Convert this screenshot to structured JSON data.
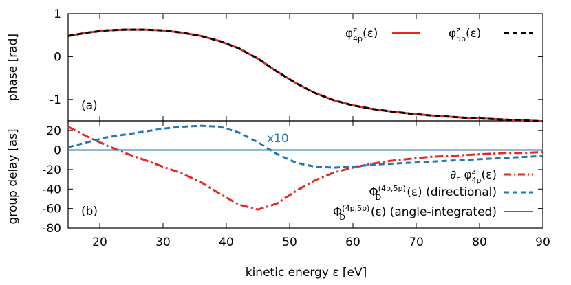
{
  "chart_data": [
    {
      "panel_label": "(a)",
      "type": "line",
      "ylabel": "phase [rad]",
      "xlim": [
        15,
        90
      ],
      "ylim": [
        -1.5,
        1
      ],
      "yticks": [
        1,
        0,
        -1
      ],
      "ytick_labels": [
        "1",
        "0",
        "-1"
      ],
      "legend_placement": "top-right",
      "series": [
        {
          "legend": "φz4p(ε)",
          "color": "#e8281e",
          "dash": "solid",
          "x": [
            15,
            18,
            21,
            24,
            27,
            30,
            33,
            36,
            39,
            42,
            45,
            48,
            51,
            54,
            57,
            60,
            63,
            66,
            69,
            72,
            75,
            78,
            81,
            84,
            87,
            90
          ],
          "y": [
            0.48,
            0.56,
            0.61,
            0.63,
            0.63,
            0.61,
            0.56,
            0.48,
            0.36,
            0.19,
            -0.05,
            -0.35,
            -0.62,
            -0.85,
            -1.02,
            -1.14,
            -1.22,
            -1.28,
            -1.33,
            -1.37,
            -1.4,
            -1.43,
            -1.45,
            -1.47,
            -1.49,
            -1.51
          ]
        },
        {
          "legend": "φz5p(ε)",
          "color": "#000000",
          "dash": "dashed",
          "x": [
            15,
            18,
            21,
            24,
            27,
            30,
            33,
            36,
            39,
            42,
            45,
            48,
            51,
            54,
            57,
            60,
            63,
            66,
            69,
            72,
            75,
            78,
            81,
            84,
            87,
            90
          ],
          "y": [
            0.48,
            0.56,
            0.61,
            0.63,
            0.63,
            0.61,
            0.56,
            0.48,
            0.36,
            0.19,
            -0.05,
            -0.35,
            -0.62,
            -0.85,
            -1.02,
            -1.14,
            -1.22,
            -1.28,
            -1.33,
            -1.37,
            -1.4,
            -1.43,
            -1.45,
            -1.47,
            -1.49,
            -1.51
          ]
        }
      ]
    },
    {
      "panel_label": "(b)",
      "type": "line",
      "ylabel": "group delay [as]",
      "xlabel": "kinetic energy ε [eV]",
      "xlim": [
        15,
        90
      ],
      "ylim": [
        -80,
        30
      ],
      "xticks": [
        20,
        30,
        40,
        50,
        60,
        70,
        80,
        90
      ],
      "yticks": [
        20,
        0,
        -20,
        -40,
        -60,
        -80
      ],
      "ytick_labels": [
        "20",
        "0",
        "-20",
        "-40",
        "-60",
        "-80"
      ],
      "annotation": "x10",
      "legend_placement": "bottom-right",
      "series": [
        {
          "legend": "∂ε φz4p(ε)",
          "color": "#e8281e",
          "dash": "dash-dot",
          "x": [
            15,
            18,
            21,
            24,
            27,
            30,
            33,
            36,
            39,
            42,
            45,
            48,
            51,
            54,
            57,
            60,
            63,
            66,
            69,
            72,
            75,
            78,
            81,
            84,
            87,
            90
          ],
          "y": [
            24,
            14,
            5,
            -3,
            -10,
            -17,
            -24,
            -33,
            -45,
            -56,
            -61,
            -55,
            -42,
            -31,
            -23,
            -18,
            -14,
            -11,
            -9,
            -7,
            -6,
            -5,
            -4,
            -3,
            -3,
            -2
          ]
        },
        {
          "legend": "Φ(4p,5p)D(ε) (directional)",
          "color": "#1f77b4",
          "dash": "dashed",
          "x": [
            15,
            18,
            21,
            24,
            27,
            30,
            33,
            36,
            39,
            42,
            45,
            48,
            51,
            54,
            57,
            60,
            63,
            66,
            69,
            72,
            75,
            78,
            81,
            84,
            87,
            90
          ],
          "y": [
            3,
            8,
            13,
            16,
            19,
            22,
            24,
            25,
            24,
            18,
            8,
            -4,
            -13,
            -17,
            -18,
            -17,
            -15,
            -14,
            -13,
            -12,
            -11,
            -10,
            -9,
            -8,
            -7,
            -6
          ]
        },
        {
          "legend": "Φ(4p,5p)D(ε) (angle-integrated)",
          "color": "#1f77b4",
          "dash": "solid",
          "x": [
            15,
            90
          ],
          "y": [
            0,
            0
          ]
        }
      ]
    }
  ],
  "legend_text": {
    "a1": {
      "base": "φ",
      "sup": "z",
      "sub": "4p",
      "rest": "(ε)"
    },
    "a2": {
      "base": "φ",
      "sup": "z",
      "sub": "5p",
      "rest": "(ε)"
    },
    "b1": {
      "pre": "∂",
      "pre_sub": "ε",
      "base": " φ",
      "sup": "z",
      "sub": "4p",
      "rest": "(ε)"
    },
    "b2": {
      "base": "Φ",
      "sup": "(4p,5p)",
      "sub": "D",
      "rest": "(ε) (directional)"
    },
    "b3": {
      "base": "Φ",
      "sup": "(4p,5p)",
      "sub": "D",
      "rest": "(ε) (angle-integrated)"
    }
  }
}
